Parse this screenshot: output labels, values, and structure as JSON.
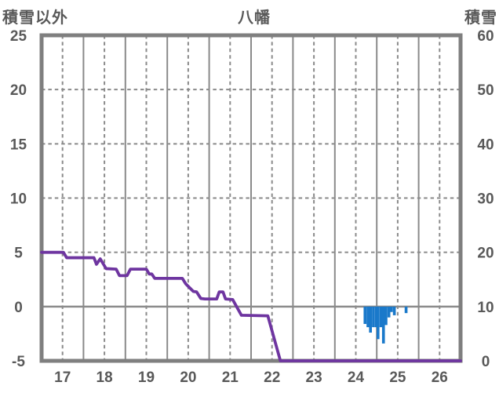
{
  "titles": {
    "left": "積雪以外",
    "center": "八幡",
    "right": "積雪"
  },
  "colors": {
    "background": "#ffffff",
    "frame": "#7f7f7f",
    "grid": "#8a8a8a",
    "zero_line": "#8a8a8a",
    "text": "#595959",
    "line_series": "#6e35a0",
    "bar_series": "#1a79ca"
  },
  "chart_data": {
    "type": "line",
    "title": "八幡",
    "x_axis": {
      "range": [
        16.5,
        26.5
      ],
      "ticks": [
        17,
        18,
        19,
        20,
        21,
        22,
        23,
        24,
        25,
        26
      ],
      "dashed_gridlines_at_ticks": true,
      "solid_gridlines_at_half_days": true
    },
    "left_axis": {
      "title": "積雪以外",
      "range": [
        -5,
        25
      ],
      "ticks": [
        25,
        20,
        15,
        10,
        5,
        0,
        -5
      ],
      "dashed_gridlines": [
        20,
        15,
        10,
        5
      ],
      "solid_zero_line": 0
    },
    "right_axis": {
      "title": "積雪",
      "range": [
        0,
        60
      ],
      "ticks": [
        60,
        50,
        40,
        30,
        20,
        10,
        0
      ]
    },
    "series": [
      {
        "name": "line-series",
        "type": "line",
        "axis": "left",
        "color_key": "line_series",
        "points": [
          [
            16.5,
            5.0
          ],
          [
            17.02,
            5.0
          ],
          [
            17.1,
            4.5
          ],
          [
            17.75,
            4.5
          ],
          [
            17.81,
            3.9
          ],
          [
            17.9,
            4.4
          ],
          [
            18.04,
            3.5
          ],
          [
            18.28,
            3.45
          ],
          [
            18.36,
            2.85
          ],
          [
            18.54,
            2.85
          ],
          [
            18.62,
            3.45
          ],
          [
            19.0,
            3.45
          ],
          [
            19.07,
            3.0
          ],
          [
            19.13,
            3.0
          ],
          [
            19.2,
            2.6
          ],
          [
            19.86,
            2.6
          ],
          [
            19.94,
            2.1
          ],
          [
            20.03,
            1.75
          ],
          [
            20.12,
            1.4
          ],
          [
            20.2,
            1.35
          ],
          [
            20.3,
            0.75
          ],
          [
            20.4,
            0.7
          ],
          [
            20.68,
            0.7
          ],
          [
            20.74,
            1.35
          ],
          [
            20.83,
            1.35
          ],
          [
            20.89,
            0.7
          ],
          [
            21.06,
            0.65
          ],
          [
            21.27,
            -0.8
          ],
          [
            21.9,
            -0.85
          ],
          [
            22.2,
            -5.0
          ],
          [
            26.5,
            -5.0
          ]
        ]
      },
      {
        "name": "bar-series",
        "type": "bar",
        "axis": "left",
        "baseline": 0,
        "bar_width_days": 0.068,
        "color_key": "bar_series",
        "points": [
          [
            24.22,
            -1.6
          ],
          [
            24.29,
            -1.9
          ],
          [
            24.35,
            -2.4
          ],
          [
            24.42,
            -1.9
          ],
          [
            24.49,
            -1.9
          ],
          [
            24.53,
            -3.0
          ],
          [
            24.6,
            -1.9
          ],
          [
            24.66,
            -3.4
          ],
          [
            24.72,
            -1.7
          ],
          [
            24.79,
            -1.0
          ],
          [
            24.85,
            -0.5
          ],
          [
            24.92,
            -0.8
          ],
          [
            25.2,
            -0.6
          ]
        ]
      }
    ]
  }
}
